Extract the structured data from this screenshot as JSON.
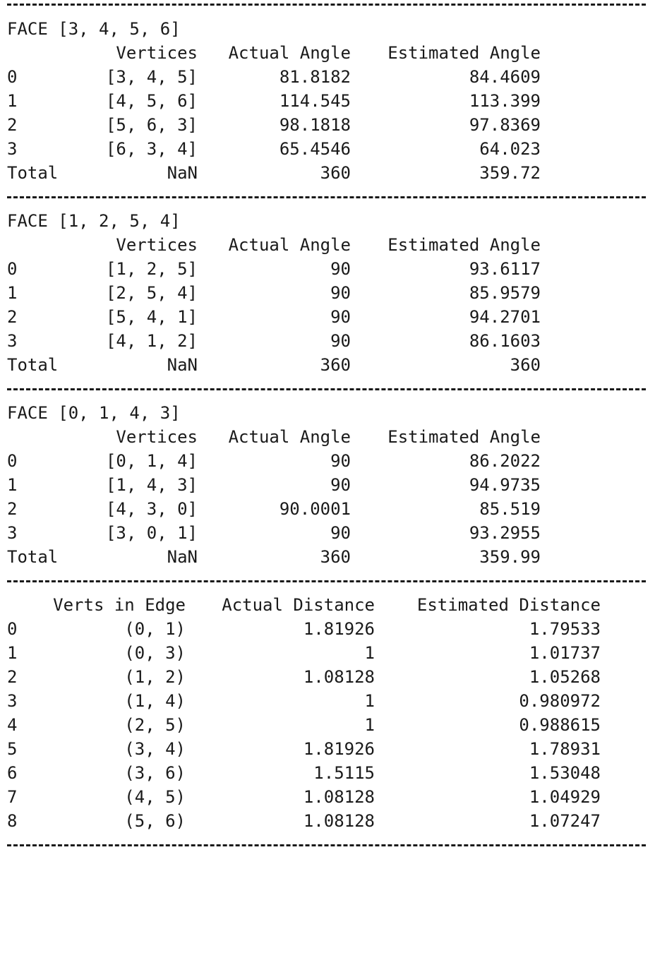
{
  "faces": [
    {
      "title": "FACE [3, 4, 5, 6]",
      "headers": {
        "vertices": "Vertices",
        "actual": "Actual Angle",
        "estimated": "Estimated Angle"
      },
      "rows": [
        {
          "idx": "0",
          "vertices": "[3, 4, 5]",
          "actual": "81.8182",
          "estimated": "84.4609"
        },
        {
          "idx": "1",
          "vertices": "[4, 5, 6]",
          "actual": "114.545",
          "estimated": "113.399"
        },
        {
          "idx": "2",
          "vertices": "[5, 6, 3]",
          "actual": "98.1818",
          "estimated": "97.8369"
        },
        {
          "idx": "3",
          "vertices": "[6, 3, 4]",
          "actual": "65.4546",
          "estimated": "64.023"
        }
      ],
      "total": {
        "label": "Total",
        "vertices": "NaN",
        "actual": "360",
        "estimated": "359.72"
      }
    },
    {
      "title": "FACE [1, 2, 5, 4]",
      "headers": {
        "vertices": "Vertices",
        "actual": "Actual Angle",
        "estimated": "Estimated Angle"
      },
      "rows": [
        {
          "idx": "0",
          "vertices": "[1, 2, 5]",
          "actual": "90",
          "estimated": "93.6117"
        },
        {
          "idx": "1",
          "vertices": "[2, 5, 4]",
          "actual": "90",
          "estimated": "85.9579"
        },
        {
          "idx": "2",
          "vertices": "[5, 4, 1]",
          "actual": "90",
          "estimated": "94.2701"
        },
        {
          "idx": "3",
          "vertices": "[4, 1, 2]",
          "actual": "90",
          "estimated": "86.1603"
        }
      ],
      "total": {
        "label": "Total",
        "vertices": "NaN",
        "actual": "360",
        "estimated": "360"
      }
    },
    {
      "title": "FACE [0, 1, 4, 3]",
      "headers": {
        "vertices": "Vertices",
        "actual": "Actual Angle",
        "estimated": "Estimated Angle"
      },
      "rows": [
        {
          "idx": "0",
          "vertices": "[0, 1, 4]",
          "actual": "90",
          "estimated": "86.2022"
        },
        {
          "idx": "1",
          "vertices": "[1, 4, 3]",
          "actual": "90",
          "estimated": "94.9735"
        },
        {
          "idx": "2",
          "vertices": "[4, 3, 0]",
          "actual": "90.0001",
          "estimated": "85.519"
        },
        {
          "idx": "3",
          "vertices": "[3, 0, 1]",
          "actual": "90",
          "estimated": "93.2955"
        }
      ],
      "total": {
        "label": "Total",
        "vertices": "NaN",
        "actual": "360",
        "estimated": "359.99"
      }
    }
  ],
  "edges": {
    "headers": {
      "verts": "Verts in Edge",
      "actual": "Actual Distance",
      "estimated": "Estimated Distance"
    },
    "rows": [
      {
        "idx": "0",
        "verts": "(0, 1)",
        "actual": "1.81926",
        "estimated": "1.79533"
      },
      {
        "idx": "1",
        "verts": "(0, 3)",
        "actual": "1",
        "estimated": "1.01737"
      },
      {
        "idx": "2",
        "verts": "(1, 2)",
        "actual": "1.08128",
        "estimated": "1.05268"
      },
      {
        "idx": "3",
        "verts": "(1, 4)",
        "actual": "1",
        "estimated": "0.980972"
      },
      {
        "idx": "4",
        "verts": "(2, 5)",
        "actual": "1",
        "estimated": "0.988615"
      },
      {
        "idx": "5",
        "verts": "(3, 4)",
        "actual": "1.81926",
        "estimated": "1.78931"
      },
      {
        "idx": "6",
        "verts": "(3, 6)",
        "actual": "1.5115",
        "estimated": "1.53048"
      },
      {
        "idx": "7",
        "verts": "(4, 5)",
        "actual": "1.08128",
        "estimated": "1.04929"
      },
      {
        "idx": "8",
        "verts": "(5, 6)",
        "actual": "1.08128",
        "estimated": "1.07247"
      }
    ]
  }
}
